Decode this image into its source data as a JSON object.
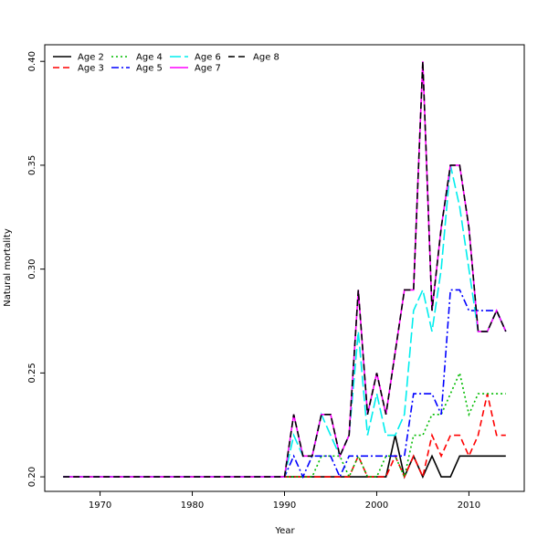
{
  "chart_data": {
    "type": "line",
    "title": "",
    "xlabel": "Year",
    "ylabel": "Natural mortality",
    "xlim": [
      1964,
      2016
    ],
    "ylim": [
      0.193,
      0.408
    ],
    "xticks": [
      1970,
      1980,
      1990,
      2000,
      2010
    ],
    "yticks": [
      0.2,
      0.25,
      0.3,
      0.35,
      0.4
    ],
    "ytick_labels": [
      "0.20",
      "0.25",
      "0.30",
      "0.35",
      "0.40"
    ],
    "grid": false,
    "legend_position": "top-left",
    "x": [
      1966,
      1967,
      1968,
      1969,
      1970,
      1971,
      1972,
      1973,
      1974,
      1975,
      1976,
      1977,
      1978,
      1979,
      1980,
      1981,
      1982,
      1983,
      1984,
      1985,
      1986,
      1987,
      1988,
      1989,
      1990,
      1991,
      1992,
      1993,
      1994,
      1995,
      1996,
      1997,
      1998,
      1999,
      2000,
      2001,
      2002,
      2003,
      2004,
      2005,
      2006,
      2007,
      2008,
      2009,
      2010,
      2011,
      2012,
      2013,
      2014
    ],
    "series": [
      {
        "name": "Age 2",
        "color": "#000000",
        "dash": "",
        "values": [
          0.2,
          0.2,
          0.2,
          0.2,
          0.2,
          0.2,
          0.2,
          0.2,
          0.2,
          0.2,
          0.2,
          0.2,
          0.2,
          0.2,
          0.2,
          0.2,
          0.2,
          0.2,
          0.2,
          0.2,
          0.2,
          0.2,
          0.2,
          0.2,
          0.2,
          0.2,
          0.2,
          0.2,
          0.2,
          0.2,
          0.2,
          0.2,
          0.2,
          0.2,
          0.2,
          0.2,
          0.22,
          0.2,
          0.21,
          0.2,
          0.21,
          0.2,
          0.2,
          0.21,
          0.21,
          0.21,
          0.21,
          0.21,
          0.21
        ]
      },
      {
        "name": "Age 3",
        "color": "#ff0000",
        "dash": "7,4",
        "values": [
          0.2,
          0.2,
          0.2,
          0.2,
          0.2,
          0.2,
          0.2,
          0.2,
          0.2,
          0.2,
          0.2,
          0.2,
          0.2,
          0.2,
          0.2,
          0.2,
          0.2,
          0.2,
          0.2,
          0.2,
          0.2,
          0.2,
          0.2,
          0.2,
          0.2,
          0.2,
          0.2,
          0.2,
          0.2,
          0.2,
          0.2,
          0.2,
          0.21,
          0.2,
          0.2,
          0.2,
          0.21,
          0.2,
          0.21,
          0.2,
          0.22,
          0.21,
          0.22,
          0.22,
          0.21,
          0.22,
          0.24,
          0.22,
          0.22
        ]
      },
      {
        "name": "Age 4",
        "color": "#00bb00",
        "dash": "2,3",
        "values": [
          0.2,
          0.2,
          0.2,
          0.2,
          0.2,
          0.2,
          0.2,
          0.2,
          0.2,
          0.2,
          0.2,
          0.2,
          0.2,
          0.2,
          0.2,
          0.2,
          0.2,
          0.2,
          0.2,
          0.2,
          0.2,
          0.2,
          0.2,
          0.2,
          0.2,
          0.2,
          0.2,
          0.2,
          0.21,
          0.21,
          0.21,
          0.2,
          0.21,
          0.2,
          0.2,
          0.21,
          0.21,
          0.2,
          0.22,
          0.22,
          0.23,
          0.23,
          0.24,
          0.25,
          0.23,
          0.24,
          0.24,
          0.24,
          0.24
        ]
      },
      {
        "name": "Age 5",
        "color": "#0000ff",
        "dash": "8,3,2,3",
        "values": [
          0.2,
          0.2,
          0.2,
          0.2,
          0.2,
          0.2,
          0.2,
          0.2,
          0.2,
          0.2,
          0.2,
          0.2,
          0.2,
          0.2,
          0.2,
          0.2,
          0.2,
          0.2,
          0.2,
          0.2,
          0.2,
          0.2,
          0.2,
          0.2,
          0.2,
          0.21,
          0.2,
          0.21,
          0.21,
          0.21,
          0.2,
          0.21,
          0.21,
          0.21,
          0.21,
          0.21,
          0.21,
          0.21,
          0.24,
          0.24,
          0.24,
          0.23,
          0.29,
          0.29,
          0.28,
          0.28,
          0.28,
          0.28,
          0.27
        ]
      },
      {
        "name": "Age 6",
        "color": "#00eeee",
        "dash": "12,4",
        "values": [
          0.2,
          0.2,
          0.2,
          0.2,
          0.2,
          0.2,
          0.2,
          0.2,
          0.2,
          0.2,
          0.2,
          0.2,
          0.2,
          0.2,
          0.2,
          0.2,
          0.2,
          0.2,
          0.2,
          0.2,
          0.2,
          0.2,
          0.2,
          0.2,
          0.2,
          0.22,
          0.21,
          0.21,
          0.23,
          0.22,
          0.21,
          0.22,
          0.27,
          0.22,
          0.24,
          0.22,
          0.22,
          0.23,
          0.28,
          0.29,
          0.27,
          0.3,
          0.35,
          0.33,
          0.3,
          0.27,
          0.27,
          0.28,
          0.27
        ]
      },
      {
        "name": "Age 7",
        "color": "#ff00ff",
        "dash": "",
        "values": [
          0.2,
          0.2,
          0.2,
          0.2,
          0.2,
          0.2,
          0.2,
          0.2,
          0.2,
          0.2,
          0.2,
          0.2,
          0.2,
          0.2,
          0.2,
          0.2,
          0.2,
          0.2,
          0.2,
          0.2,
          0.2,
          0.2,
          0.2,
          0.2,
          0.2,
          0.23,
          0.21,
          0.21,
          0.23,
          0.23,
          0.21,
          0.22,
          0.29,
          0.23,
          0.25,
          0.23,
          0.26,
          0.29,
          0.29,
          0.4,
          0.28,
          0.32,
          0.35,
          0.35,
          0.32,
          0.27,
          0.27,
          0.28,
          0.27
        ]
      },
      {
        "name": "Age 8",
        "color": "#000000",
        "dash": "7,4",
        "values": [
          0.2,
          0.2,
          0.2,
          0.2,
          0.2,
          0.2,
          0.2,
          0.2,
          0.2,
          0.2,
          0.2,
          0.2,
          0.2,
          0.2,
          0.2,
          0.2,
          0.2,
          0.2,
          0.2,
          0.2,
          0.2,
          0.2,
          0.2,
          0.2,
          0.2,
          0.23,
          0.21,
          0.21,
          0.23,
          0.23,
          0.21,
          0.22,
          0.29,
          0.23,
          0.25,
          0.23,
          0.26,
          0.29,
          0.29,
          0.4,
          0.28,
          0.32,
          0.35,
          0.35,
          0.32,
          0.27,
          0.27,
          0.28,
          0.27
        ]
      }
    ]
  }
}
